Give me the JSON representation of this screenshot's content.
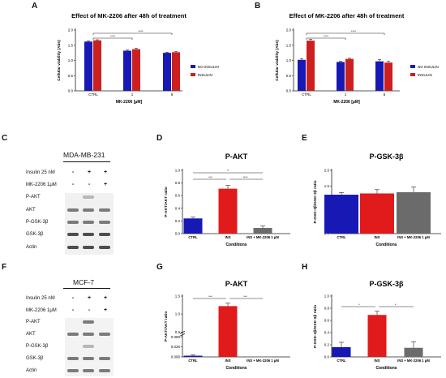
{
  "panels": {
    "A": "A",
    "B": "B",
    "C": "C",
    "D": "D",
    "E": "E",
    "F": "F",
    "G": "G",
    "H": "H"
  },
  "colors": {
    "no_insulin": "#1818b4",
    "insulin": "#cc2020",
    "ctrl": "#1818b4",
    "ins": "#e11b1b",
    "ins_mk": "#6b6b6b",
    "blot_bg": "#f3f3f3"
  },
  "blotC": {
    "cell_line": "MDA-MB-231",
    "treatments": [
      {
        "label": "Insulin 25 nM",
        "signs": [
          "-",
          "+",
          "+"
        ]
      },
      {
        "label": "MK-2206 1μM",
        "signs": [
          "-",
          "-",
          "+"
        ]
      }
    ],
    "bands": [
      "P-AKT",
      "AKT",
      "P-GSK-3β",
      "GSK-3β",
      "Actin"
    ]
  },
  "blotF": {
    "cell_line": "MCF-7",
    "treatments": [
      {
        "label": "Insulin 25 nM",
        "signs": [
          "-",
          "+",
          "+"
        ]
      },
      {
        "label": "MK-2206 1μM",
        "signs": [
          "-",
          "-",
          "+"
        ]
      }
    ],
    "bands": [
      "P-AKT",
      "AKT",
      "P-GSK-3β",
      "GSK-3β",
      "Actin"
    ]
  },
  "chart_data": [
    {
      "panel": "A",
      "type": "bar",
      "title": "Effect of MK-2206 after 48h of treatment",
      "xlabel": "MK-2206 [μM]",
      "ylabel": "Cellular viability (Abs)",
      "categories": [
        "CTRL",
        "1",
        "5"
      ],
      "series": [
        {
          "name": "NO INSULIN",
          "values": [
            1.62,
            1.32,
            1.25
          ],
          "errors": [
            0.02,
            0.02,
            0.02
          ]
        },
        {
          "name": "INSULIN",
          "values": [
            1.66,
            1.37,
            1.27
          ],
          "errors": [
            0.02,
            0.03,
            0.02
          ]
        }
      ],
      "ylim": [
        0,
        2.0
      ],
      "yticks": [
        "0.0",
        "0.5",
        "1.0",
        "1.5",
        "2.0"
      ],
      "sig": [
        "****",
        "****"
      ],
      "legend": "right"
    },
    {
      "panel": "B",
      "type": "bar",
      "title": "Effect of MK-2206 after 48h of treatment",
      "xlabel": "MK-2206 [μM]",
      "ylabel": "Cellular viability (Abs)",
      "categories": [
        "CTRL",
        "1",
        "5"
      ],
      "series": [
        {
          "name": "NO INSULIN",
          "values": [
            1.02,
            0.95,
            0.97
          ],
          "errors": [
            0.04,
            0.02,
            0.06
          ]
        },
        {
          "name": "INSULIN",
          "values": [
            1.65,
            1.05,
            0.93
          ],
          "errors": [
            0.05,
            0.02,
            0.05
          ]
        }
      ],
      "ylim": [
        0,
        2.0
      ],
      "yticks": [
        "0.0",
        "0.5",
        "1.0",
        "1.5",
        "2.0"
      ],
      "sig": [
        "****",
        "****"
      ],
      "legend": "right"
    },
    {
      "panel": "D",
      "type": "bar",
      "title": "P-AKT",
      "xlabel": "Conditions",
      "ylabel": "P-AKT/AKT ratio",
      "categories": [
        "CTRL",
        "INS",
        "INS + MK-2206 1 μM"
      ],
      "values": [
        0.24,
        0.71,
        0.09
      ],
      "errors": [
        0.02,
        0.05,
        0.03
      ],
      "ylim": [
        0,
        1.0
      ],
      "yticks": [
        "0.0",
        "0.2",
        "0.4",
        "0.6",
        "0.8",
        "1.0"
      ],
      "sig": [
        "*",
        "***",
        "****"
      ]
    },
    {
      "panel": "E",
      "type": "bar",
      "title": "P-GSK-3β",
      "xlabel": "Conditions",
      "ylabel": "P-GSK-3β/GSK-3β ratio",
      "categories": [
        "CTRL",
        "INS",
        "INS + MK-2206 1 μM"
      ],
      "values": [
        1.23,
        1.27,
        1.31
      ],
      "errors": [
        0.07,
        0.12,
        0.17
      ],
      "ylim": [
        0,
        2.0
      ],
      "yticks": [
        "0.0",
        "0.5",
        "1.0",
        "1.5",
        "2.0"
      ],
      "sig": []
    },
    {
      "panel": "G",
      "type": "bar",
      "title": "P-AKT",
      "xlabel": "Conditions",
      "ylabel": "P-AKT/AKT ratio",
      "categories": [
        "CTRL",
        "INS",
        "INS + MK-2206 1 μM"
      ],
      "values": [
        0.003,
        1.22,
        0.0
      ],
      "errors": [
        0.002,
        0.08,
        0.0
      ],
      "ylim": [
        0,
        1.5
      ],
      "yticks": [
        "0.000",
        "0.025",
        "0.050",
        "0.5",
        "1.0",
        "1.5"
      ],
      "sig": [
        "***",
        "***"
      ]
    },
    {
      "panel": "H",
      "type": "bar",
      "title": "P-GSK-3β",
      "xlabel": "Conditions",
      "ylabel": "P-GSK-3β/GSK-3β ratio",
      "categories": [
        "CTRL",
        "INS",
        "INS + MK-2206 1 μM"
      ],
      "values": [
        0.16,
        0.69,
        0.15
      ],
      "errors": [
        0.08,
        0.06,
        0.1
      ],
      "ylim": [
        0,
        1.0
      ],
      "yticks": [
        "0.0",
        "0.2",
        "0.4",
        "0.6",
        "0.8",
        "1.0"
      ],
      "sig": [
        "*",
        "*"
      ]
    }
  ]
}
